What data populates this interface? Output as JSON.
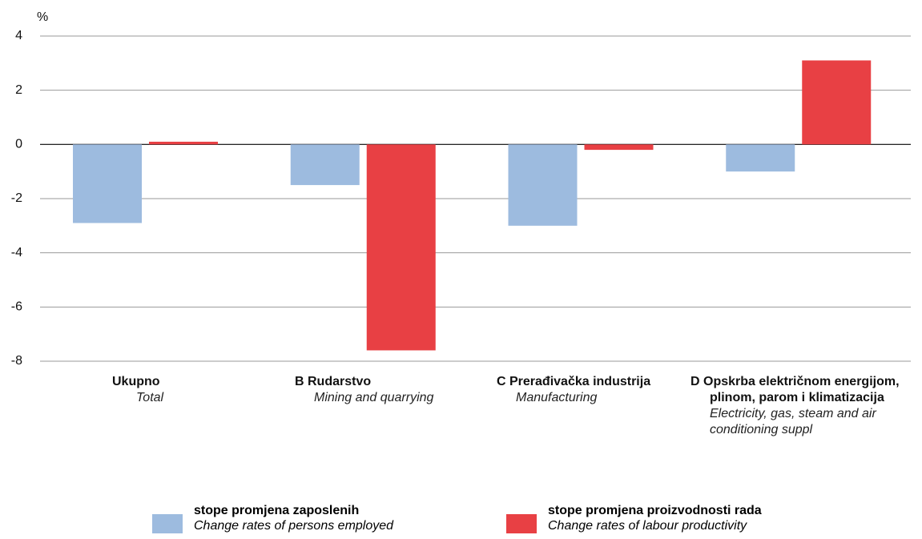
{
  "chart_data": {
    "type": "bar",
    "y_label": "%",
    "categories": [
      "Ukupno",
      "B  Rudarstvo",
      "C  Prerađivačka industrija",
      "D  Opskrba električnom energijom, plinom, parom i klimatizacija"
    ],
    "categories_en": [
      "Total",
      "Mining and quarrying",
      "Manufacturing",
      "Electricity, gas, steam and air conditioning suppl"
    ],
    "series": [
      {
        "name": "stope promjena zaposlenih",
        "name_en": "Change rates of persons employed",
        "color": "#9dbbdf",
        "values": [
          -2.9,
          -1.5,
          -3.0,
          -1.0
        ]
      },
      {
        "name": "stope promjena proizvodnosti rada",
        "name_en": "Change rates of labour productivity",
        "color": "#e84044",
        "values": [
          0.1,
          -7.6,
          -0.2,
          3.1
        ]
      }
    ],
    "ylim": [
      -8,
      4
    ],
    "yticks": [
      -8,
      -6,
      -4,
      -2,
      0,
      2,
      4
    ],
    "grid": true,
    "legend": "bottom"
  }
}
